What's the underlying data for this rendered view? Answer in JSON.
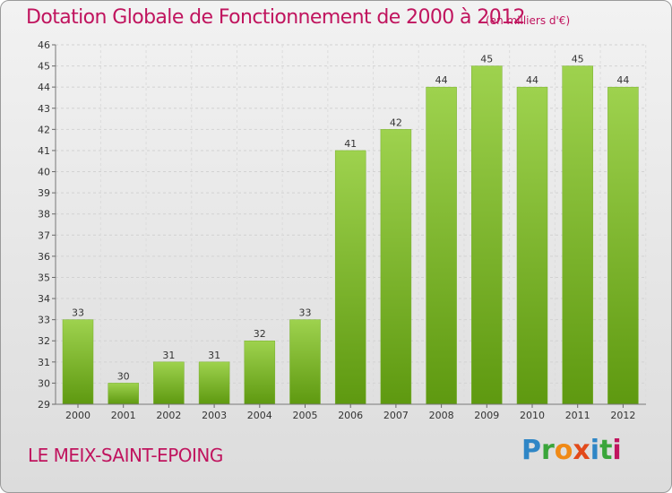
{
  "header": {
    "title": "Dotation Globale de Fonctionnement de 2000 à 2012",
    "unit": "(en milliers d'€)"
  },
  "footer": {
    "commune": "LE MEIX-SAINT-EPOING",
    "logo": [
      "P",
      "r",
      "o",
      "x",
      "i",
      "t",
      "i"
    ]
  },
  "colors": {
    "title": "#c0145e",
    "bar_top": "#9ed24e",
    "bar_bottom": "#5e9910"
  },
  "chart_data": {
    "type": "bar",
    "title": "Dotation Globale de Fonctionnement de 2000 à 2012",
    "subtitle": "(en milliers d'€)",
    "categories": [
      "2000",
      "2001",
      "2002",
      "2003",
      "2004",
      "2005",
      "2006",
      "2007",
      "2008",
      "2009",
      "2010",
      "2011",
      "2012"
    ],
    "values": [
      33,
      30,
      31,
      31,
      32,
      33,
      41,
      42,
      44,
      45,
      44,
      45,
      44
    ],
    "ylim": [
      29,
      46
    ],
    "yticks": [
      29,
      30,
      31,
      32,
      33,
      34,
      35,
      36,
      37,
      38,
      39,
      40,
      41,
      42,
      43,
      44,
      45,
      46
    ],
    "grid": true,
    "data_labels": true
  }
}
